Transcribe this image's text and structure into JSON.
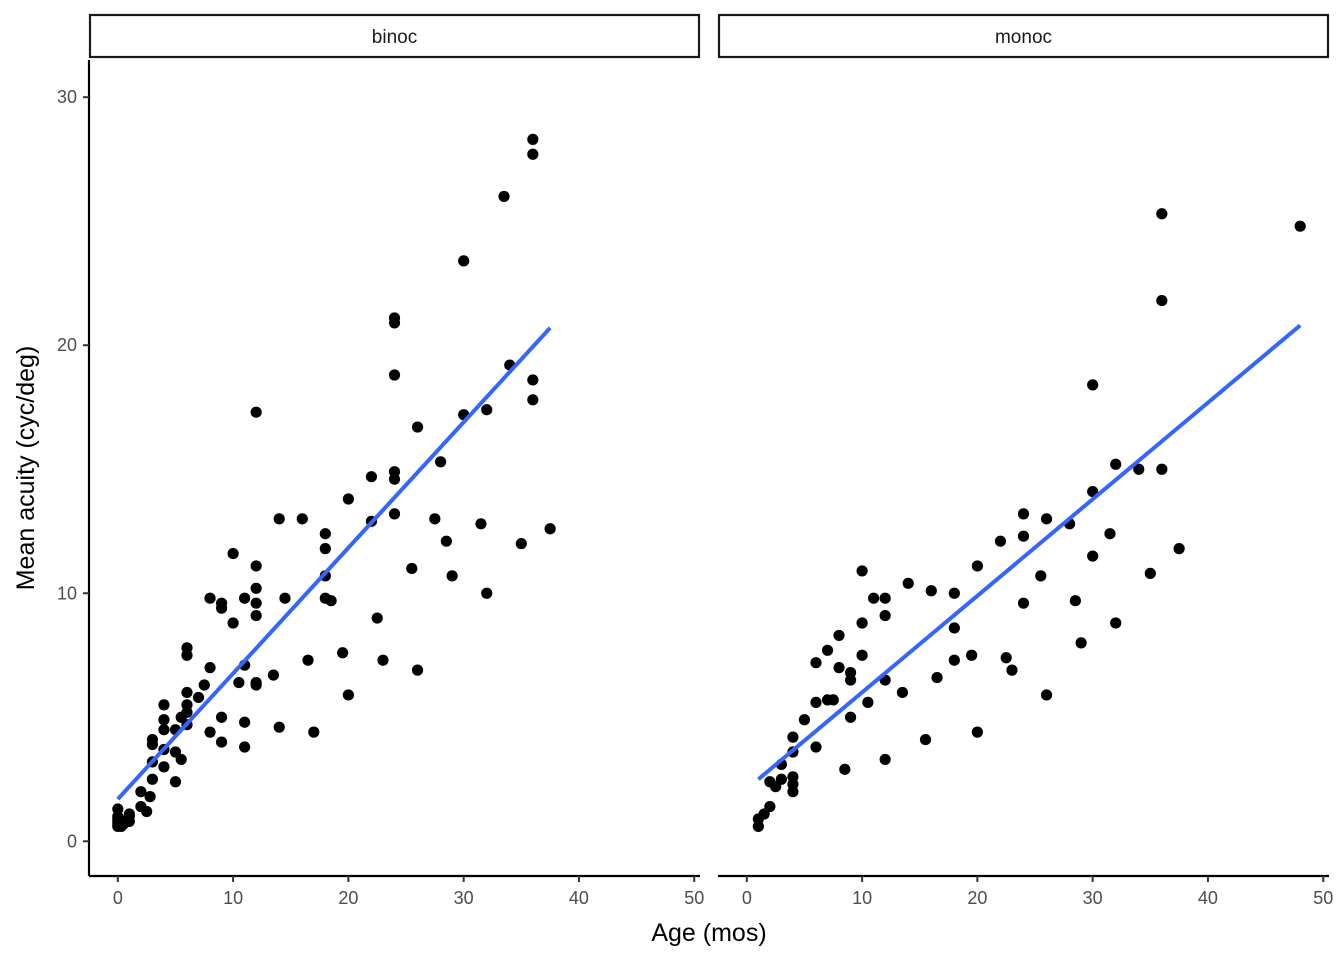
{
  "chart_data": {
    "type": "scatter",
    "xlabel": "Age (mos)",
    "ylabel": "Mean acuity (cyc/deg)",
    "xlim": [
      -2.5,
      50.5
    ],
    "ylim": [
      -1.4,
      31.5
    ],
    "xticks": [
      0,
      10,
      20,
      30,
      40,
      50
    ],
    "yticks": [
      0,
      10,
      20,
      30
    ],
    "grid": false,
    "colors": {
      "points": "#000000",
      "fit_line": "#3366FF",
      "strip_border": "#1a1a1a",
      "axis": "#000000",
      "tick_text": "#4d4d4d"
    },
    "facets": [
      {
        "label": "binoc",
        "fit_line": {
          "x": [
            0,
            37.5
          ],
          "y": [
            1.7,
            20.7
          ]
        },
        "points": [
          [
            0,
            0.6
          ],
          [
            0,
            0.7
          ],
          [
            0,
            0.8
          ],
          [
            0,
            0.9
          ],
          [
            0,
            1.0
          ],
          [
            0,
            1.3
          ],
          [
            0.3,
            0.6
          ],
          [
            0.5,
            0.7
          ],
          [
            0.5,
            0.8
          ],
          [
            1,
            0.8
          ],
          [
            1,
            1.0
          ],
          [
            1,
            1.1
          ],
          [
            2,
            1.4
          ],
          [
            2,
            2.0
          ],
          [
            2.5,
            1.2
          ],
          [
            2.8,
            1.8
          ],
          [
            3,
            2.5
          ],
          [
            3,
            3.2
          ],
          [
            3,
            3.9
          ],
          [
            3,
            4.1
          ],
          [
            4,
            3.0
          ],
          [
            4,
            3.7
          ],
          [
            4,
            4.5
          ],
          [
            4,
            4.9
          ],
          [
            4,
            5.5
          ],
          [
            5,
            2.4
          ],
          [
            5,
            3.6
          ],
          [
            5,
            4.5
          ],
          [
            5.5,
            3.3
          ],
          [
            5.5,
            5.0
          ],
          [
            6,
            4.7
          ],
          [
            6,
            5.2
          ],
          [
            6,
            5.5
          ],
          [
            6,
            6.0
          ],
          [
            6,
            7.5
          ],
          [
            6,
            7.8
          ],
          [
            7,
            5.8
          ],
          [
            7.5,
            6.3
          ],
          [
            8,
            4.4
          ],
          [
            8,
            7.0
          ],
          [
            8,
            9.8
          ],
          [
            9,
            4.0
          ],
          [
            9,
            5.0
          ],
          [
            9,
            9.4
          ],
          [
            9,
            9.6
          ],
          [
            10,
            8.8
          ],
          [
            10,
            11.6
          ],
          [
            10.5,
            6.4
          ],
          [
            11,
            3.8
          ],
          [
            11,
            4.8
          ],
          [
            11,
            7.1
          ],
          [
            11,
            9.8
          ],
          [
            12,
            6.3
          ],
          [
            12,
            6.4
          ],
          [
            12,
            9.1
          ],
          [
            12,
            9.6
          ],
          [
            12,
            10.2
          ],
          [
            12,
            11.1
          ],
          [
            12,
            17.3
          ],
          [
            13.5,
            6.7
          ],
          [
            14,
            4.6
          ],
          [
            14,
            13.0
          ],
          [
            14.5,
            9.8
          ],
          [
            16,
            13.0
          ],
          [
            16.5,
            7.3
          ],
          [
            17,
            4.4
          ],
          [
            18,
            9.8
          ],
          [
            18,
            10.7
          ],
          [
            18,
            11.8
          ],
          [
            18,
            12.4
          ],
          [
            18.5,
            9.7
          ],
          [
            19.5,
            7.6
          ],
          [
            20,
            5.9
          ],
          [
            20,
            13.8
          ],
          [
            22,
            12.9
          ],
          [
            22,
            14.7
          ],
          [
            22.5,
            9.0
          ],
          [
            23,
            7.3
          ],
          [
            24,
            13.2
          ],
          [
            24,
            14.6
          ],
          [
            24,
            14.9
          ],
          [
            24,
            18.8
          ],
          [
            24,
            20.9
          ],
          [
            24,
            21.1
          ],
          [
            25.5,
            11.0
          ],
          [
            26,
            6.9
          ],
          [
            26,
            16.7
          ],
          [
            27.5,
            13.0
          ],
          [
            28,
            15.3
          ],
          [
            28.5,
            12.1
          ],
          [
            29,
            10.7
          ],
          [
            30,
            17.2
          ],
          [
            30,
            23.4
          ],
          [
            31.5,
            12.8
          ],
          [
            32,
            10.0
          ],
          [
            32,
            17.4
          ],
          [
            33.5,
            26.0
          ],
          [
            34,
            19.2
          ],
          [
            35,
            12.0
          ],
          [
            36,
            17.8
          ],
          [
            36,
            18.6
          ],
          [
            36,
            27.7
          ],
          [
            36,
            28.3
          ],
          [
            37.5,
            12.6
          ]
        ]
      },
      {
        "label": "monoc",
        "fit_line": {
          "x": [
            1,
            48
          ],
          "y": [
            2.5,
            20.8
          ]
        },
        "points": [
          [
            1,
            0.6
          ],
          [
            1,
            0.9
          ],
          [
            1.5,
            1.1
          ],
          [
            2,
            1.4
          ],
          [
            2,
            2.4
          ],
          [
            2.5,
            2.2
          ],
          [
            3,
            2.5
          ],
          [
            3,
            3.1
          ],
          [
            4,
            2.0
          ],
          [
            4,
            2.3
          ],
          [
            4,
            2.6
          ],
          [
            4,
            3.6
          ],
          [
            4,
            4.2
          ],
          [
            5,
            4.9
          ],
          [
            6,
            3.8
          ],
          [
            6,
            5.6
          ],
          [
            6,
            7.2
          ],
          [
            7,
            5.7
          ],
          [
            7,
            7.7
          ],
          [
            7.5,
            5.7
          ],
          [
            8,
            7.0
          ],
          [
            8,
            8.3
          ],
          [
            8.5,
            2.9
          ],
          [
            9,
            5.0
          ],
          [
            9,
            6.5
          ],
          [
            9,
            6.8
          ],
          [
            10,
            7.5
          ],
          [
            10,
            8.8
          ],
          [
            10,
            10.9
          ],
          [
            10.5,
            5.6
          ],
          [
            11,
            9.8
          ],
          [
            12,
            3.3
          ],
          [
            12,
            6.5
          ],
          [
            12,
            9.1
          ],
          [
            12,
            9.8
          ],
          [
            13.5,
            6.0
          ],
          [
            14,
            10.4
          ],
          [
            15.5,
            4.1
          ],
          [
            16,
            10.1
          ],
          [
            16.5,
            6.6
          ],
          [
            18,
            7.3
          ],
          [
            18,
            8.6
          ],
          [
            18,
            10.0
          ],
          [
            19.5,
            7.5
          ],
          [
            20,
            4.4
          ],
          [
            20,
            11.1
          ],
          [
            22,
            12.1
          ],
          [
            22.5,
            7.4
          ],
          [
            23,
            6.9
          ],
          [
            24,
            9.6
          ],
          [
            24,
            12.3
          ],
          [
            24,
            13.2
          ],
          [
            25.5,
            10.7
          ],
          [
            26,
            5.9
          ],
          [
            26,
            13.0
          ],
          [
            28,
            12.8
          ],
          [
            28.5,
            9.7
          ],
          [
            29,
            8.0
          ],
          [
            30,
            11.5
          ],
          [
            30,
            14.1
          ],
          [
            30,
            18.4
          ],
          [
            31.5,
            12.4
          ],
          [
            32,
            8.8
          ],
          [
            32,
            15.2
          ],
          [
            34,
            15.0
          ],
          [
            35,
            10.8
          ],
          [
            36,
            15.0
          ],
          [
            36,
            21.8
          ],
          [
            36,
            25.3
          ],
          [
            37.5,
            11.8
          ],
          [
            48,
            24.8
          ]
        ]
      }
    ]
  }
}
